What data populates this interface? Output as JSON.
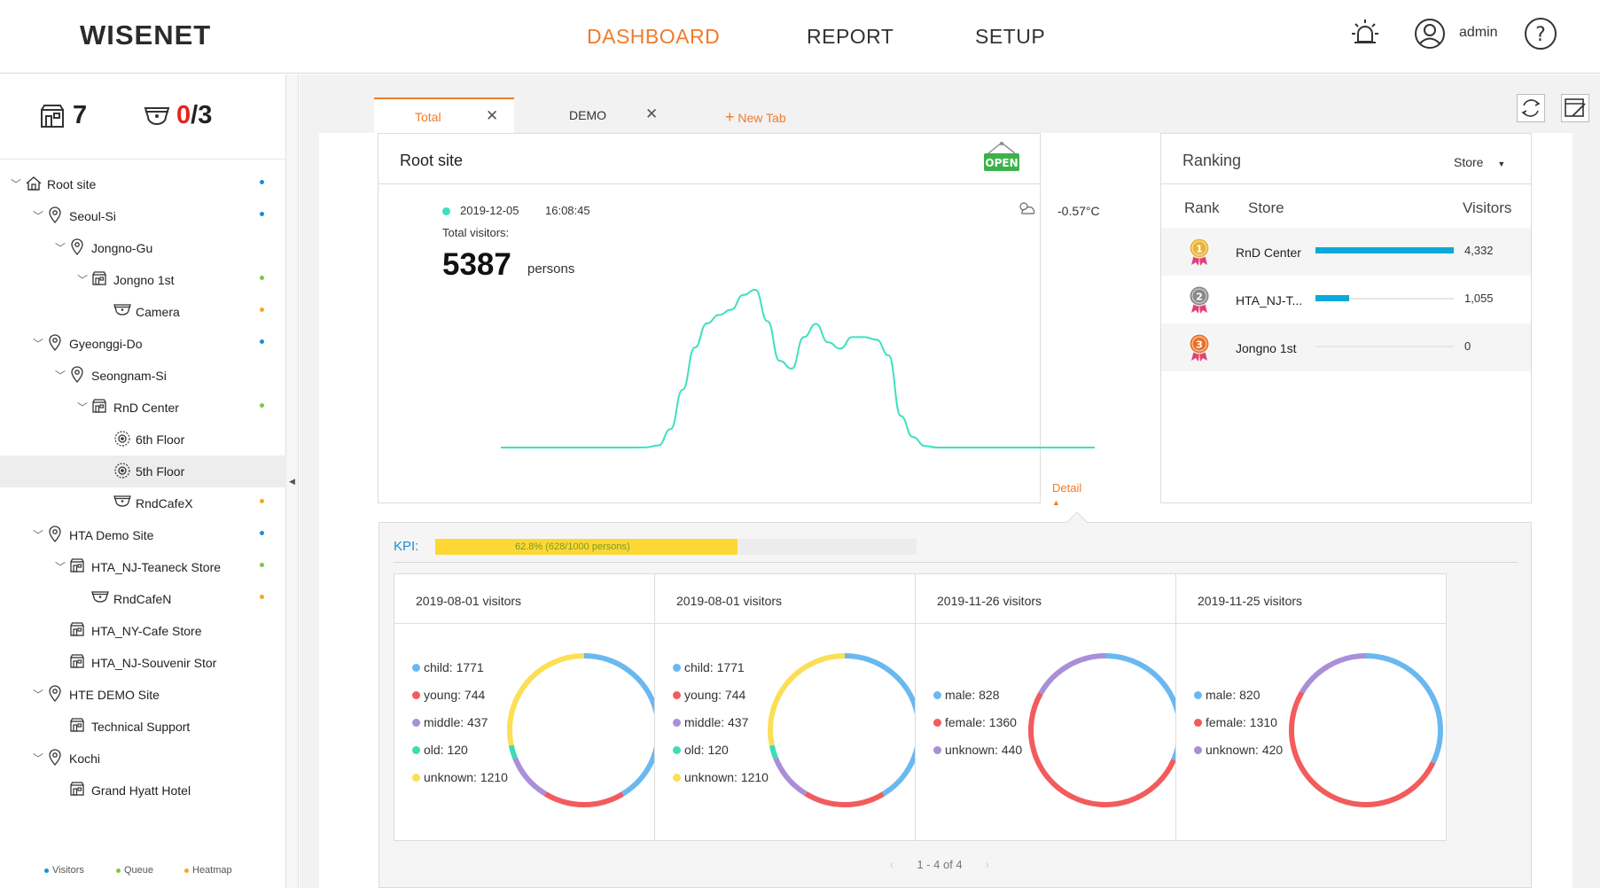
{
  "header": {
    "logo": "WISENET",
    "nav": [
      "DASHBOARD",
      "REPORT",
      "SETUP"
    ],
    "active_nav": "DASHBOARD",
    "user": "admin",
    "icons": [
      "alarm-icon",
      "user-icon",
      "help-icon"
    ]
  },
  "sidebar": {
    "store_count": "7",
    "camera_online": "0",
    "camera_total": "/3",
    "tree": [
      {
        "label": "Root site",
        "level": 0,
        "icon": "home-icon",
        "chevron": true,
        "dot": "#1a8fd6"
      },
      {
        "label": "Seoul-Si",
        "level": 1,
        "icon": "pin-icon",
        "chevron": true,
        "dot": "#1a8fd6"
      },
      {
        "label": "Jongno-Gu",
        "level": 2,
        "icon": "pin-icon",
        "chevron": true,
        "dot": ""
      },
      {
        "label": "Jongno 1st",
        "level": 3,
        "icon": "store-icon",
        "chevron": true,
        "dot": "#7ac943"
      },
      {
        "label": "Camera",
        "level": 4,
        "icon": "camera-icon",
        "chevron": false,
        "dot": "#f5a623"
      },
      {
        "label": "Gyeonggi-Do",
        "level": 1,
        "icon": "pin-icon",
        "chevron": true,
        "dot": "#1a8fd6"
      },
      {
        "label": "Seongnam-Si",
        "level": 2,
        "icon": "pin-icon",
        "chevron": true,
        "dot": ""
      },
      {
        "label": "RnD Center",
        "level": 3,
        "icon": "store-icon",
        "chevron": true,
        "dot": "#7ac943"
      },
      {
        "label": "6th Floor",
        "level": 4,
        "icon": "floor-icon",
        "chevron": false,
        "dot": ""
      },
      {
        "label": "5th Floor",
        "level": 4,
        "icon": "floor-icon",
        "chevron": false,
        "dot": "",
        "selected": true
      },
      {
        "label": "RndCafeX",
        "level": 4,
        "icon": "camera-icon",
        "chevron": false,
        "dot": "#f5a623"
      },
      {
        "label": "HTA Demo Site",
        "level": 1,
        "icon": "pin-icon",
        "chevron": true,
        "dot": "#1a8fd6"
      },
      {
        "label": "HTA_NJ-Teaneck Store",
        "level": 2,
        "icon": "store-icon",
        "chevron": true,
        "dot": "#7ac943"
      },
      {
        "label": "RndCafeN",
        "level": 3,
        "icon": "camera-icon",
        "chevron": false,
        "dot": "#f5a623"
      },
      {
        "label": "HTA_NY-Cafe Store",
        "level": 2,
        "icon": "store-icon",
        "chevron": false,
        "dot": ""
      },
      {
        "label": "HTA_NJ-Souvenir Stor",
        "level": 2,
        "icon": "store-icon",
        "chevron": false,
        "dot": ""
      },
      {
        "label": "HTE DEMO Site",
        "level": 1,
        "icon": "pin-icon",
        "chevron": true,
        "dot": ""
      },
      {
        "label": "Technical Support",
        "level": 2,
        "icon": "store-icon",
        "chevron": false,
        "dot": ""
      },
      {
        "label": "Kochi",
        "level": 1,
        "icon": "pin-icon",
        "chevron": true,
        "dot": ""
      },
      {
        "label": "Grand Hyatt Hotel",
        "level": 2,
        "icon": "store-icon",
        "chevron": false,
        "dot": ""
      }
    ],
    "legend": [
      {
        "label": "Visitors",
        "color": "#1a8fd6"
      },
      {
        "label": "Queue",
        "color": "#7ac943"
      },
      {
        "label": "Heatmap",
        "color": "#f5a623"
      }
    ]
  },
  "tabs": [
    {
      "label": "Total",
      "active": true
    },
    {
      "label": "DEMO",
      "active": false
    }
  ],
  "new_tab_label": "New Tab",
  "site_card": {
    "title": "Root site",
    "badge": "OPEN",
    "date": "2019-12-05",
    "time": "16:08:45",
    "temperature": "-0.57°C",
    "visitors_label": "Total visitors:",
    "visitors": "5387",
    "unit": "persons",
    "detail_label": "Detail",
    "line_color": "#3de0c0"
  },
  "chart_data": [
    {
      "type": "line",
      "title": "",
      "xlabel": "",
      "ylabel": "",
      "x": [
        0,
        1,
        2,
        3,
        4,
        5,
        6,
        7,
        8,
        9,
        10,
        11,
        12,
        13,
        14,
        15,
        16,
        17,
        18,
        19,
        20,
        21,
        22,
        23,
        24,
        25,
        26,
        27,
        28,
        29,
        30,
        31,
        32,
        33,
        34,
        35,
        36,
        37,
        38,
        39,
        40,
        41,
        42,
        43,
        44,
        45,
        46,
        47,
        48,
        49
      ],
      "series": [
        {
          "values": [
            0,
            0,
            0,
            0,
            0,
            0,
            0,
            0,
            0,
            0,
            0,
            0,
            0.5,
            4,
            35,
            110,
            190,
            236,
            252,
            262,
            290,
            300,
            240,
            165,
            150,
            210,
            235,
            200,
            188,
            210,
            210,
            205,
            175,
            60,
            20,
            3,
            0,
            0,
            0,
            0,
            0,
            0,
            0,
            0,
            0,
            0,
            0,
            0,
            0,
            0
          ]
        }
      ],
      "ylim": [
        0,
        310
      ],
      "grid": false
    },
    {
      "type": "pie",
      "title": "2019-08-01 visitors",
      "categories": [
        "child",
        "young",
        "middle",
        "old",
        "unknown"
      ],
      "values": [
        1771,
        744,
        437,
        120,
        1210
      ],
      "colors": [
        "#6ab8f0",
        "#f25c5c",
        "#a98fd8",
        "#3ddcb4",
        "#fbdf56"
      ]
    },
    {
      "type": "pie",
      "title": "2019-08-01 visitors",
      "categories": [
        "child",
        "young",
        "middle",
        "old",
        "unknown"
      ],
      "values": [
        1771,
        744,
        437,
        120,
        1210
      ],
      "colors": [
        "#6ab8f0",
        "#f25c5c",
        "#a98fd8",
        "#3ddcb4",
        "#fbdf56"
      ]
    },
    {
      "type": "pie",
      "title": "2019-11-26 visitors",
      "categories": [
        "male",
        "female",
        "unknown"
      ],
      "values": [
        828,
        1360,
        440
      ],
      "colors": [
        "#6ab8f0",
        "#f25c5c",
        "#a98fd8"
      ]
    },
    {
      "type": "pie",
      "title": "2019-11-25 visitors",
      "categories": [
        "male",
        "female",
        "unknown"
      ],
      "values": [
        820,
        1310,
        420
      ],
      "colors": [
        "#6ab8f0",
        "#f25c5c",
        "#a98fd8"
      ]
    }
  ],
  "ranking": {
    "title": "Ranking",
    "filter": "Store",
    "columns": [
      "Rank",
      "Store",
      "Visitors"
    ],
    "rows": [
      {
        "rank": "1",
        "store": "RnD Center",
        "visitors": "4,332",
        "value": 4332,
        "medal": "#e8b43a"
      },
      {
        "rank": "2",
        "store": "HTA_NJ-T...",
        "visitors": "1,055",
        "value": 1055,
        "medal": "#8a8a8a"
      },
      {
        "rank": "3",
        "store": "Jongno 1st",
        "visitors": "0",
        "value": 0,
        "medal": "#e8742a"
      }
    ],
    "max_value": 4332
  },
  "kpi": {
    "label": "KPI:",
    "text": "62.8% (628/1000 persons)",
    "fraction": 0.628
  },
  "pager": "1 - 4 of 4"
}
